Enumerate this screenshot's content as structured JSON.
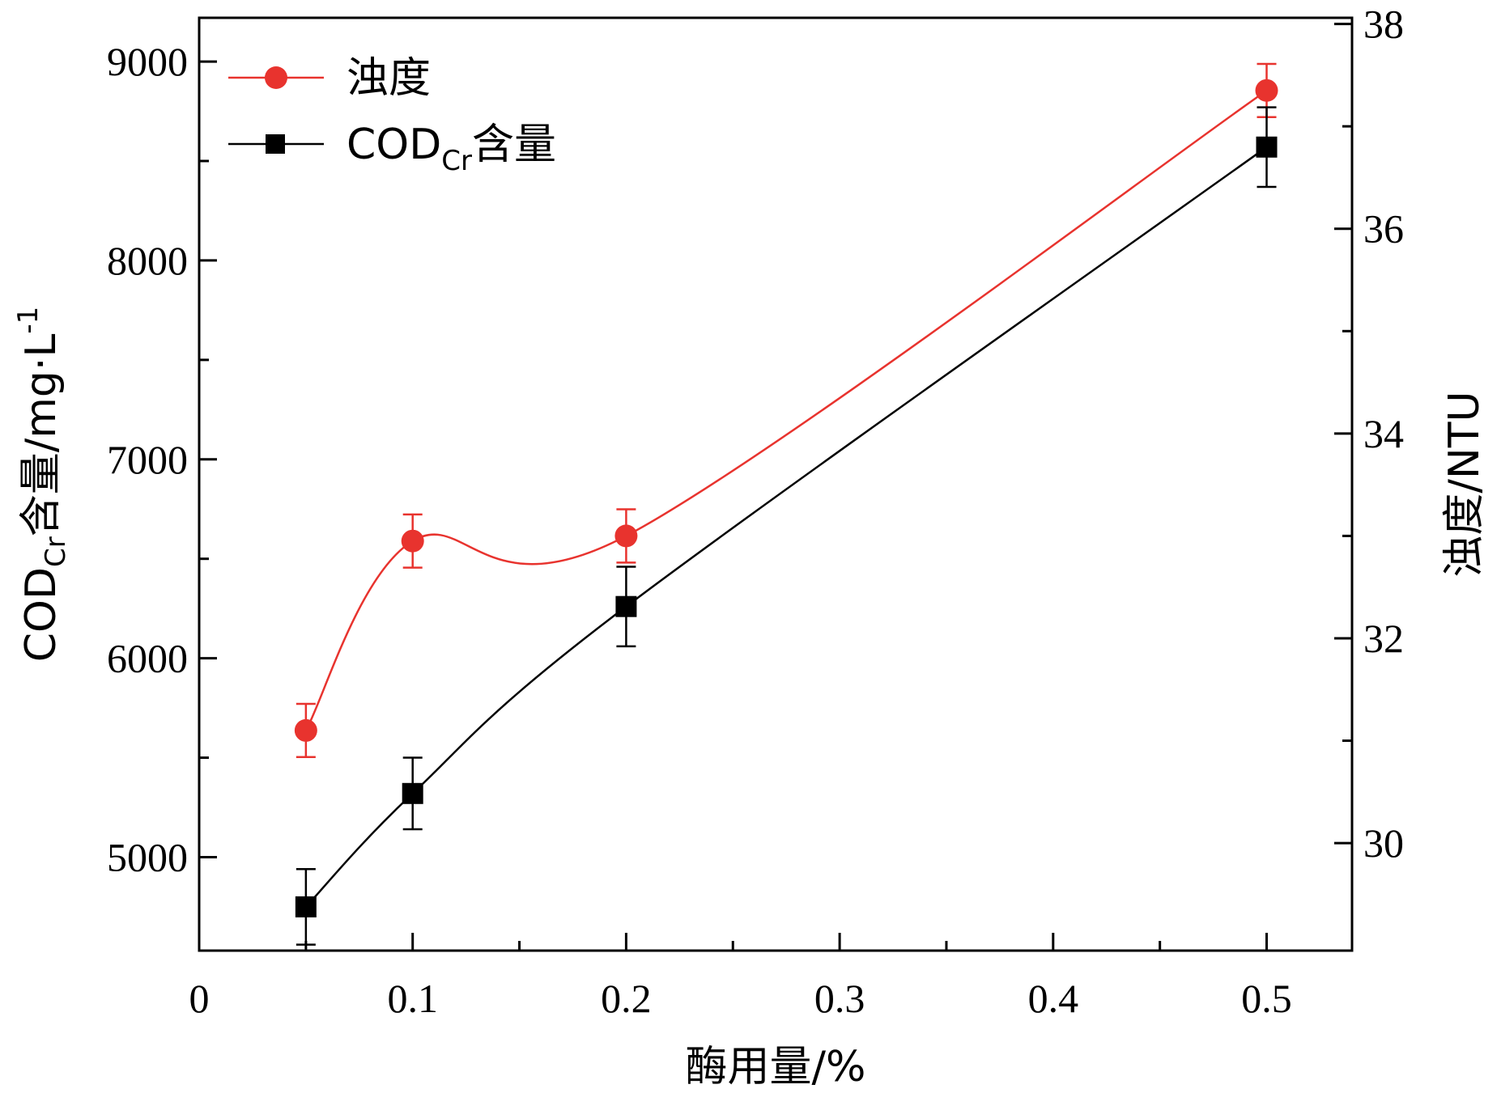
{
  "chart_data": {
    "type": "line",
    "xlabel": "酶用量/%",
    "ylabel_left": {
      "main": "COD",
      "sub": "Cr",
      "rest": "含量/mg·L",
      "sup": "-1"
    },
    "ylabel_right": "浊度/NTU",
    "xlim": [
      0,
      0.54
    ],
    "ylim_left": [
      4530,
      9220
    ],
    "ylim_right": [
      28.95,
      38.06
    ],
    "x_ticks": [
      "0",
      "0.1",
      "0.2",
      "0.3",
      "0.4",
      "0.5"
    ],
    "y_left_ticks": [
      "5000",
      "6000",
      "7000",
      "8000",
      "9000"
    ],
    "y_right_ticks": [
      "30",
      "32",
      "34",
      "36",
      "38"
    ],
    "legend_position": "top-left",
    "series": [
      {
        "name": "浊度",
        "axis": "right",
        "color": "#e8332e",
        "marker": "circle",
        "x": [
          0.05,
          0.1,
          0.2,
          0.5
        ],
        "y": [
          31.1,
          32.95,
          33.0,
          37.35
        ],
        "yerr": [
          0.26,
          0.26,
          0.26,
          0.26
        ]
      },
      {
        "name": "COD",
        "name_sub": "Cr",
        "name_rest": "含量",
        "axis": "left",
        "color": "#000000",
        "marker": "square",
        "x": [
          0.05,
          0.1,
          0.2,
          0.5
        ],
        "y": [
          4750,
          5320,
          6260,
          8570
        ],
        "yerr": [
          190,
          180,
          200,
          200
        ]
      }
    ]
  }
}
